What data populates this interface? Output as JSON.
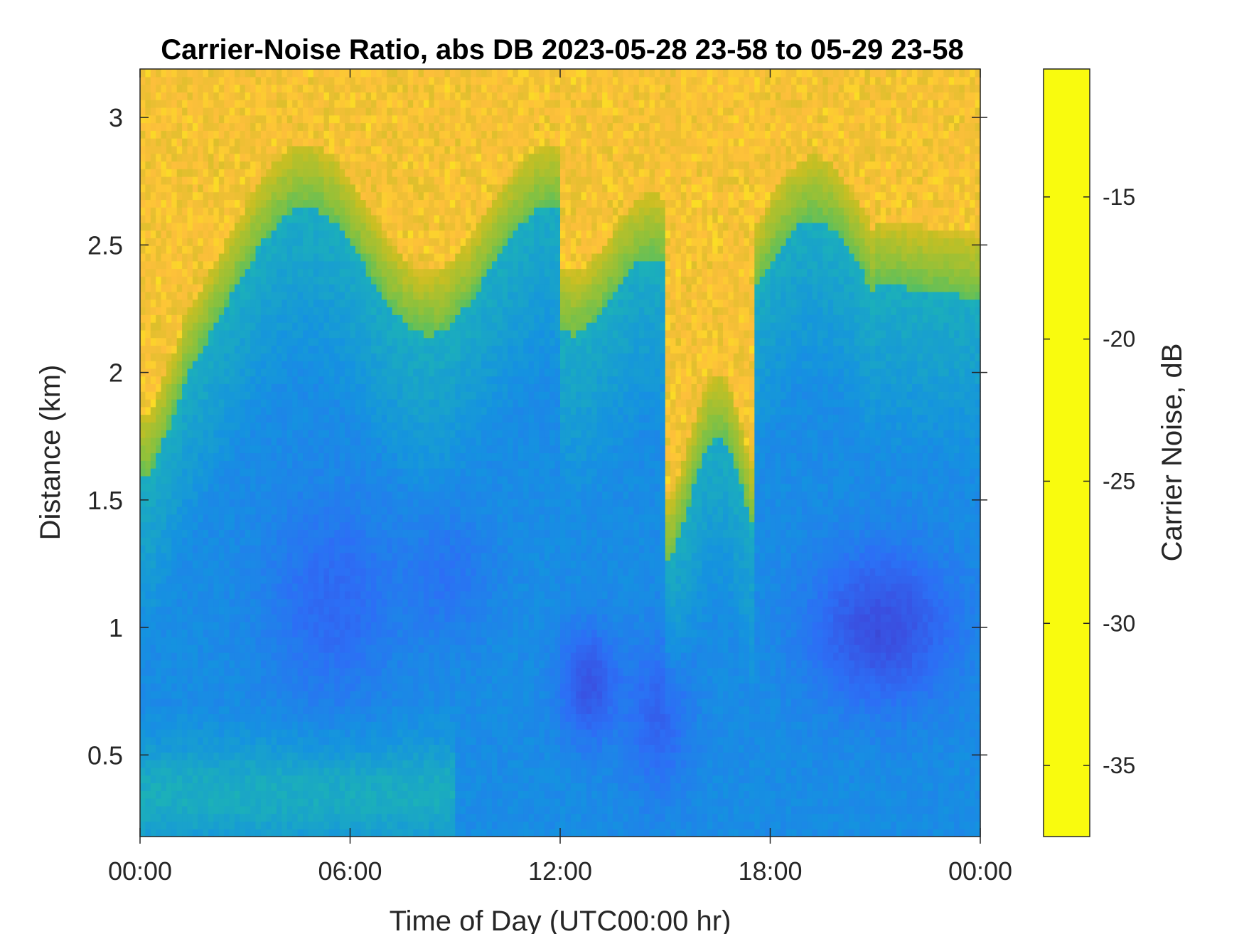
{
  "chart_data": {
    "type": "heatmap",
    "title": "Carrier-Noise Ratio, abs DB 2023-05-28 23-58 to 05-29 23-58",
    "xlabel": "Time of Day (UTC00:00 hr)",
    "ylabel": "Distance (km)",
    "x_tick_labels": [
      "00:00",
      "06:00",
      "12:00",
      "18:00",
      "00:00"
    ],
    "x_tick_hours": [
      0,
      6,
      12,
      18,
      24
    ],
    "xlim_hours": [
      0,
      24
    ],
    "y_ticks": [
      0.5,
      1,
      1.5,
      2,
      2.5,
      3
    ],
    "y_tick_labels": [
      "0.5",
      "1",
      "1.5",
      "2",
      "2.5",
      "3"
    ],
    "ylim": [
      0.18,
      3.19
    ],
    "colorbar": {
      "label": "Carrier Noise, dB",
      "ticks": [
        -15,
        -20,
        -25,
        -30,
        -35
      ],
      "tick_labels": [
        "-15",
        "-20",
        "-25",
        "-30",
        "-35"
      ],
      "range": [
        -37.5,
        -10.5
      ],
      "direction": "reversed",
      "colors": [
        "#f9fb0e",
        "#fdbf3b",
        "#c9bf22",
        "#8ac13d",
        "#3bbe76",
        "#1cb1b8",
        "#1592e0",
        "#2c6ff5",
        "#3a4fe0",
        "#3a2ea8"
      ]
    },
    "grid": false
  }
}
